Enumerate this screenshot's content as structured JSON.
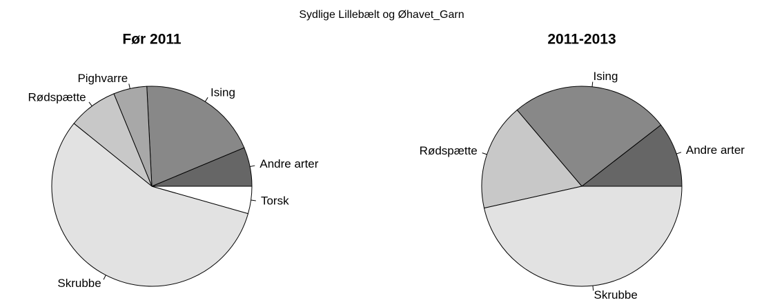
{
  "title": "Sydlige Lillebælt og Øhavet_Garn",
  "chart_data": [
    {
      "type": "pie",
      "title": "Før 2011",
      "categories": [
        "Andre arter",
        "Ising",
        "Pighvarre",
        "Rødspætte",
        "Skrubbe",
        "Torsk"
      ],
      "values": [
        6.3,
        19.5,
        5.4,
        8.0,
        56.4,
        4.4
      ],
      "colors": [
        "#666666",
        "#888888",
        "#a8a8a8",
        "#c8c8c8",
        "#e2e2e2",
        "#ffffff"
      ]
    },
    {
      "type": "pie",
      "title": "2011-2013",
      "categories": [
        "Andre arter",
        "Ising",
        "Rødspætte",
        "Skrubbe"
      ],
      "values": [
        10.5,
        25.7,
        17.3,
        46.5
      ],
      "colors": [
        "#666666",
        "#888888",
        "#c8c8c8",
        "#e2e2e2"
      ]
    }
  ]
}
